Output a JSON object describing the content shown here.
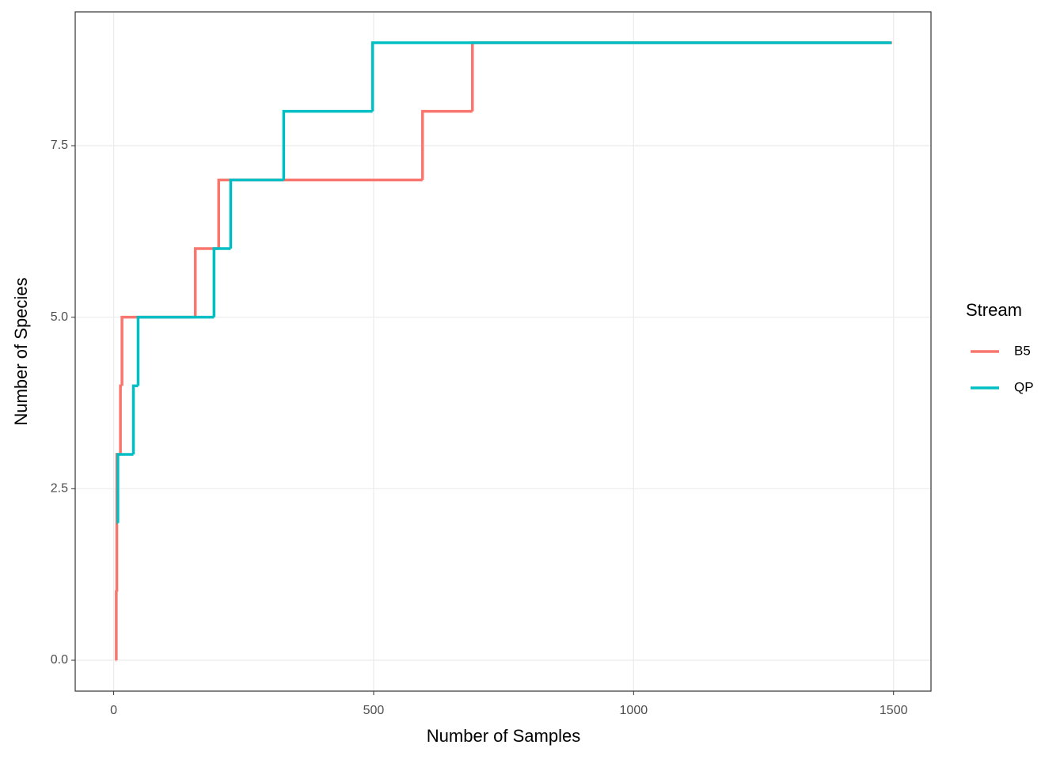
{
  "chart_data": {
    "type": "step",
    "x_label": "Number of Samples",
    "y_label": "Number of Species",
    "legend_title": "Stream",
    "legend_position": "right",
    "grid": true,
    "xlim": [
      -74,
      1572
    ],
    "ylim": [
      -0.45,
      9.45
    ],
    "xticks": [
      0,
      500,
      1000,
      1500
    ],
    "yticks": [
      {
        "value": 0,
        "label": "0.0"
      },
      {
        "value": 2.5,
        "label": "2.5"
      },
      {
        "value": 5,
        "label": "5.0"
      },
      {
        "value": 7.5,
        "label": "7.5"
      }
    ],
    "series": [
      {
        "name": "B5",
        "color": "#F8766D",
        "x": [
          4,
          5,
          6,
          13,
          16,
          157,
          202,
          594,
          690,
          1497
        ],
        "values": [
          0,
          1,
          3,
          4,
          5,
          6,
          7,
          8,
          9,
          9
        ]
      },
      {
        "name": "QP",
        "color": "#00BFC4",
        "x": [
          6,
          8,
          38,
          47,
          193,
          225,
          327,
          498,
          1496
        ],
        "values": [
          2,
          3,
          4,
          5,
          6,
          7,
          8,
          9,
          9
        ]
      }
    ]
  }
}
